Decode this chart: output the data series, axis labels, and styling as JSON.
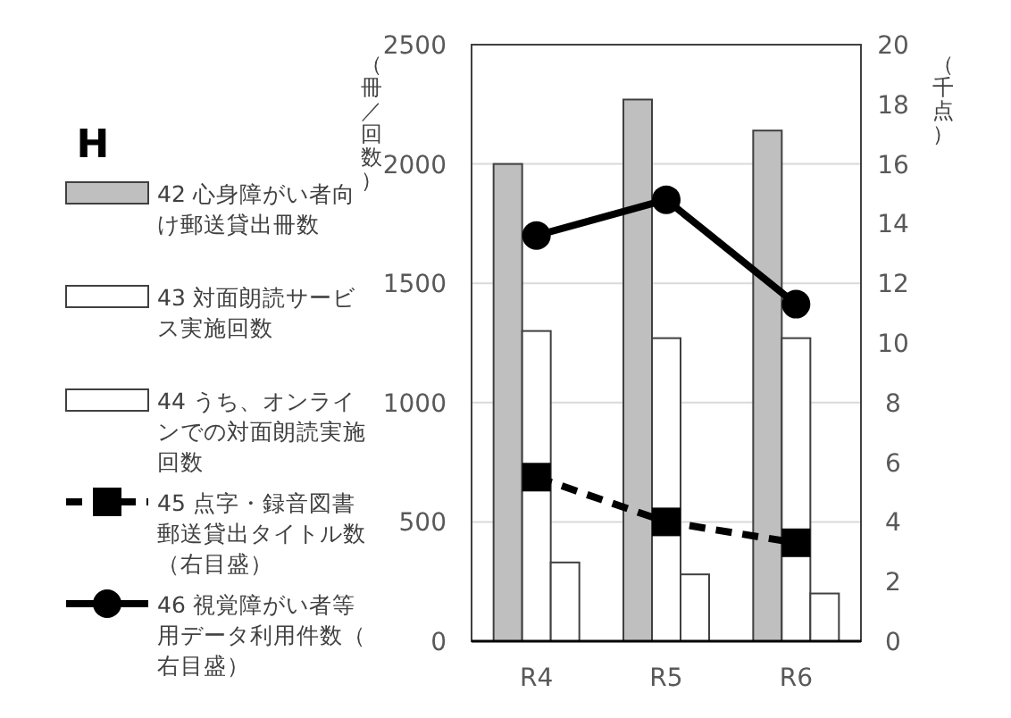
{
  "chart_data": {
    "type": "bar",
    "title": "H",
    "categories": [
      "R4",
      "R5",
      "R6"
    ],
    "ylabel": "（冊／回数）",
    "y2label": "（千点）",
    "ylim": [
      0,
      2500
    ],
    "yticks": [
      0,
      500,
      1000,
      1500,
      2000,
      2500
    ],
    "y2lim": [
      0,
      20
    ],
    "y2ticks": [
      0,
      2,
      4,
      6,
      8,
      10,
      12,
      14,
      16,
      18,
      20
    ],
    "grid": "y",
    "legend": "left",
    "series": [
      {
        "name": "42 心身障がい者向け郵送貸出冊数",
        "color": "#bfbfbf",
        "values": [
          2000,
          2270,
          2140
        ]
      },
      {
        "name": "43 対面朗読サービス実施回数",
        "color": "#ffffff",
        "values": [
          1300,
          1270,
          1270
        ]
      },
      {
        "name": "44 うち、オンラインでの対面朗読実施回数",
        "color": "#ffffff",
        "values": [
          330,
          280,
          200
        ]
      },
      {
        "name": "45 点字・録音図書郵送貸出タイトル数（右目盛）",
        "type": "line",
        "axis": "y2",
        "color": "#000000",
        "marker": "square",
        "line_style": "dashed",
        "values": [
          5.5,
          4.0,
          3.3
        ]
      },
      {
        "name": "46 視覚障がい者等用データ利用件数（右目盛）",
        "type": "line",
        "axis": "y2",
        "color": "#000000",
        "marker": "circle",
        "line_style": "solid",
        "values": [
          13.6,
          14.8,
          11.3
        ]
      }
    ]
  }
}
